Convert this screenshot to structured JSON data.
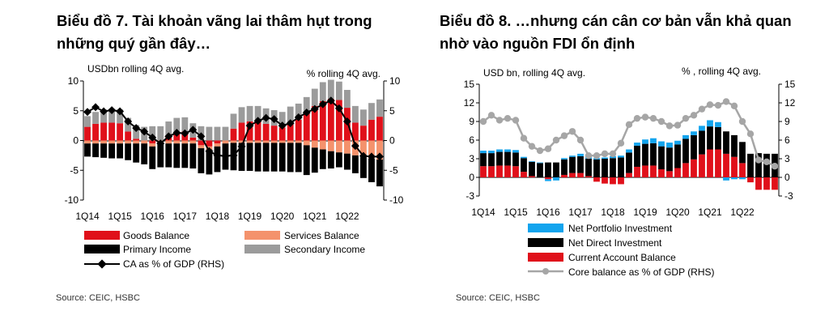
{
  "chart_data": [
    {
      "type": "bar",
      "title_line1": "Biểu đồ 7. Tài khoản vãng lai thâm hụt trong",
      "title_line2": "những quý gần đây…",
      "left_unit": "USDbn rolling 4Q avg.",
      "right_unit": "% rolling 4Q avg.",
      "ylim": [
        -10,
        10
      ],
      "y_ticks": [
        "10",
        "5",
        "0",
        "-5",
        "-10"
      ],
      "y2lim": [
        -10,
        10
      ],
      "y2_ticks": [
        "10",
        "5",
        "0",
        "-5",
        "-10"
      ],
      "x_tick_labels": [
        "1Q14",
        "1Q15",
        "1Q16",
        "1Q17",
        "1Q18",
        "1Q19",
        "1Q20",
        "1Q21",
        "1Q22"
      ],
      "colors": {
        "goods": "#e0101a",
        "services": "#f4926c",
        "primary": "#000000",
        "secondary": "#9b9b9b",
        "line": "#000000"
      },
      "legend": {
        "goods": "Goods Balance",
        "services": "Services Balance",
        "primary": "Primary Income",
        "secondary": "Secondary Income",
        "line": "CA as % of GDP (RHS)"
      },
      "series": {
        "goods": [
          2.3,
          2.8,
          3.0,
          3.0,
          2.9,
          1.5,
          0.3,
          0.0,
          -0.5,
          0.0,
          0.8,
          1.4,
          1.5,
          0.5,
          -0.8,
          -1.0,
          -0.5,
          0.0,
          2.0,
          3.0,
          3.2,
          3.2,
          2.8,
          2.5,
          2.2,
          3.0,
          3.5,
          4.5,
          5.8,
          6.6,
          7.0,
          6.8,
          5.5,
          3.0,
          2.5,
          3.5,
          4.0
        ],
        "services": [
          -0.5,
          -0.5,
          -0.5,
          -0.5,
          -0.5,
          -0.5,
          -0.5,
          -0.5,
          -0.5,
          -0.5,
          -0.5,
          -0.5,
          -0.5,
          -0.5,
          -0.5,
          -0.5,
          -0.5,
          -0.5,
          -0.4,
          -0.4,
          -0.4,
          -0.4,
          -0.4,
          -0.4,
          -0.4,
          -0.4,
          -0.4,
          -0.8,
          -1.2,
          -1.5,
          -1.8,
          -2.0,
          -2.2,
          -2.5,
          -2.8,
          -3.0,
          -3.2
        ],
        "primary": [
          -2.2,
          -2.3,
          -2.4,
          -2.5,
          -2.5,
          -2.8,
          -3.2,
          -3.5,
          -3.8,
          -4.0,
          -4.0,
          -4.1,
          -4.1,
          -4.2,
          -4.2,
          -4.2,
          -4.3,
          -4.4,
          -4.6,
          -4.7,
          -4.7,
          -4.8,
          -4.8,
          -4.8,
          -4.8,
          -4.9,
          -4.9,
          -5.0,
          -4.2,
          -3.3,
          -2.9,
          -2.5,
          -2.7,
          -3.0,
          -3.5,
          -4.0,
          -4.5
        ],
        "secondary": [
          1.8,
          2.0,
          2.2,
          2.3,
          2.3,
          2.3,
          2.3,
          2.3,
          2.4,
          2.4,
          2.4,
          2.4,
          2.4,
          2.4,
          2.4,
          2.3,
          2.3,
          2.3,
          2.5,
          2.6,
          2.6,
          2.6,
          2.6,
          2.6,
          2.6,
          2.7,
          2.7,
          2.8,
          2.9,
          3.2,
          3.2,
          3.1,
          3.0,
          2.8,
          2.7,
          2.8,
          2.9
        ],
        "line": [
          4.8,
          5.6,
          4.9,
          5.1,
          4.9,
          3.2,
          2.1,
          1.5,
          0.5,
          -0.5,
          0.7,
          1.3,
          1.2,
          1.8,
          0.7,
          -1.8,
          -2.5,
          -2.6,
          -2.5,
          -1.0,
          2.5,
          3.3,
          3.8,
          3.6,
          2.5,
          2.9,
          3.9,
          4.7,
          5.3,
          6.1,
          6.7,
          5.4,
          3.2,
          -0.9,
          -2.6,
          -2.7,
          -2.7
        ]
      }
    },
    {
      "type": "bar",
      "title_line1": "Biểu đồ 8. …nhưng cán cân cơ bản vẫn khả quan",
      "title_line2": "nhờ vào nguồn FDI ổn định",
      "left_unit": "USD bn, rolling 4Q avg.",
      "right_unit": "% , rolling 4Q avg.",
      "ylim": [
        -3,
        15
      ],
      "y_ticks": [
        "15",
        "12",
        "9",
        "6",
        "3",
        "0",
        "-3"
      ],
      "y2lim": [
        -3,
        15
      ],
      "y2_ticks": [
        "15",
        "12",
        "9",
        "6",
        "3",
        "0",
        "-3"
      ],
      "x_tick_labels": [
        "1Q14",
        "1Q15",
        "1Q16",
        "1Q17",
        "1Q18",
        "1Q19",
        "1Q20",
        "1Q21",
        "1Q22"
      ],
      "colors": {
        "portfolio": "#12a4ee",
        "direct": "#000000",
        "current": "#e0101a",
        "line": "#a6a6a6"
      },
      "legend": {
        "portfolio": "Net Portfolio Investment",
        "direct": "Net Direct Investment",
        "current": "Current Account Balance",
        "line": "Core balance as % of GDP (RHS)"
      },
      "series": {
        "current": [
          1.8,
          1.8,
          1.9,
          1.9,
          1.8,
          0.9,
          0.2,
          0.0,
          -0.3,
          0.0,
          0.4,
          0.7,
          0.7,
          0.2,
          -0.7,
          -1.0,
          -1.1,
          -1.1,
          0.7,
          1.7,
          1.9,
          1.9,
          1.3,
          1.0,
          1.5,
          2.3,
          2.9,
          3.7,
          4.5,
          4.5,
          3.8,
          3.3,
          2.3,
          -0.8,
          -2.0,
          -2.0,
          -2.0
        ],
        "direct": [
          2.1,
          2.1,
          2.2,
          2.2,
          2.2,
          2.2,
          2.3,
          2.3,
          2.4,
          2.4,
          2.5,
          2.6,
          2.7,
          2.8,
          2.9,
          3.0,
          3.1,
          3.2,
          3.3,
          3.4,
          3.5,
          3.6,
          3.7,
          3.8,
          3.8,
          3.9,
          3.9,
          3.8,
          3.7,
          3.6,
          3.6,
          3.5,
          3.4,
          3.8,
          3.9,
          3.8,
          3.8
        ],
        "portfolio": [
          0.4,
          0.4,
          0.4,
          0.4,
          0.4,
          0.2,
          0.1,
          0.1,
          -0.3,
          -0.5,
          0.2,
          0.2,
          0.4,
          0.3,
          0.2,
          0.2,
          0.3,
          0.3,
          0.5,
          0.5,
          0.7,
          0.8,
          0.8,
          0.8,
          0.6,
          0.6,
          0.6,
          0.8,
          1.0,
          0.8,
          -0.5,
          -0.3,
          -0.3,
          0.0,
          0.0,
          0.0,
          0.0
        ],
        "line": [
          9.0,
          10.0,
          9.2,
          9.5,
          9.2,
          6.3,
          5.0,
          4.3,
          4.6,
          6.0,
          6.7,
          7.4,
          6.0,
          3.5,
          3.5,
          3.8,
          3.8,
          5.5,
          8.5,
          9.5,
          9.7,
          9.5,
          9.0,
          8.3,
          8.4,
          9.5,
          10.0,
          11.0,
          11.7,
          11.6,
          12.2,
          11.5,
          9.0,
          7.0,
          2.8,
          2.5,
          1.8
        ]
      }
    }
  ],
  "sources": [
    "Source: CEIC, HSBC",
    "Source: CEIC, HSBC"
  ]
}
